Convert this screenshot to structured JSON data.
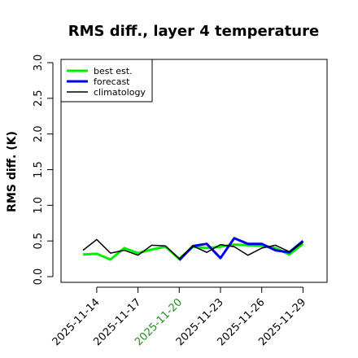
{
  "chart_data": {
    "type": "line",
    "title": "RMS diff., layer 4 temperature",
    "ylabel": "RMS diff. (K)",
    "ylim": [
      0,
      3.0
    ],
    "yticks": [
      0.0,
      0.5,
      1.0,
      1.5,
      2.0,
      2.5,
      3.0
    ],
    "ytick_labels": [
      "0.0",
      "0.5",
      "1.0",
      "1.5",
      "2.0",
      "2.5",
      "3.0"
    ],
    "xticks": [
      {
        "date": "2025-11-14",
        "color": "#000000"
      },
      {
        "date": "2025-11-17",
        "color": "#000000"
      },
      {
        "date": "2025-11-20",
        "color": "#228B22"
      },
      {
        "date": "2025-11-23",
        "color": "#000000"
      },
      {
        "date": "2025-11-26",
        "color": "#000000"
      },
      {
        "date": "2025-11-29",
        "color": "#000000"
      }
    ],
    "x": [
      "2025-11-13",
      "2025-11-14",
      "2025-11-15",
      "2025-11-16",
      "2025-11-17",
      "2025-11-18",
      "2025-11-19",
      "2025-11-20",
      "2025-11-21",
      "2025-11-22",
      "2025-11-23",
      "2025-11-24",
      "2025-11-25",
      "2025-11-26",
      "2025-11-27",
      "2025-11-28",
      "2025-11-29"
    ],
    "legend_position": "top-left",
    "grid": false,
    "series": [
      {
        "name": "best est.",
        "color": "#00ee00",
        "width": 3,
        "values": [
          0.31,
          0.32,
          0.24,
          0.4,
          0.33,
          0.38,
          0.42,
          0.25,
          0.42,
          0.4,
          0.42,
          0.45,
          0.44,
          0.43,
          0.4,
          0.31,
          0.46
        ]
      },
      {
        "name": "forecast",
        "color": "#0000ee",
        "width": 3,
        "values": [
          null,
          null,
          null,
          null,
          null,
          null,
          null,
          0.23,
          0.43,
          0.46,
          0.26,
          0.54,
          0.46,
          0.46,
          0.37,
          0.34,
          0.5
        ]
      },
      {
        "name": "climatology",
        "color": "#000000",
        "width": 1.5,
        "values": [
          0.37,
          0.52,
          0.33,
          0.37,
          0.3,
          0.44,
          0.43,
          0.25,
          0.43,
          0.34,
          0.45,
          0.42,
          0.3,
          0.4,
          0.44,
          0.35,
          0.48
        ]
      }
    ]
  }
}
